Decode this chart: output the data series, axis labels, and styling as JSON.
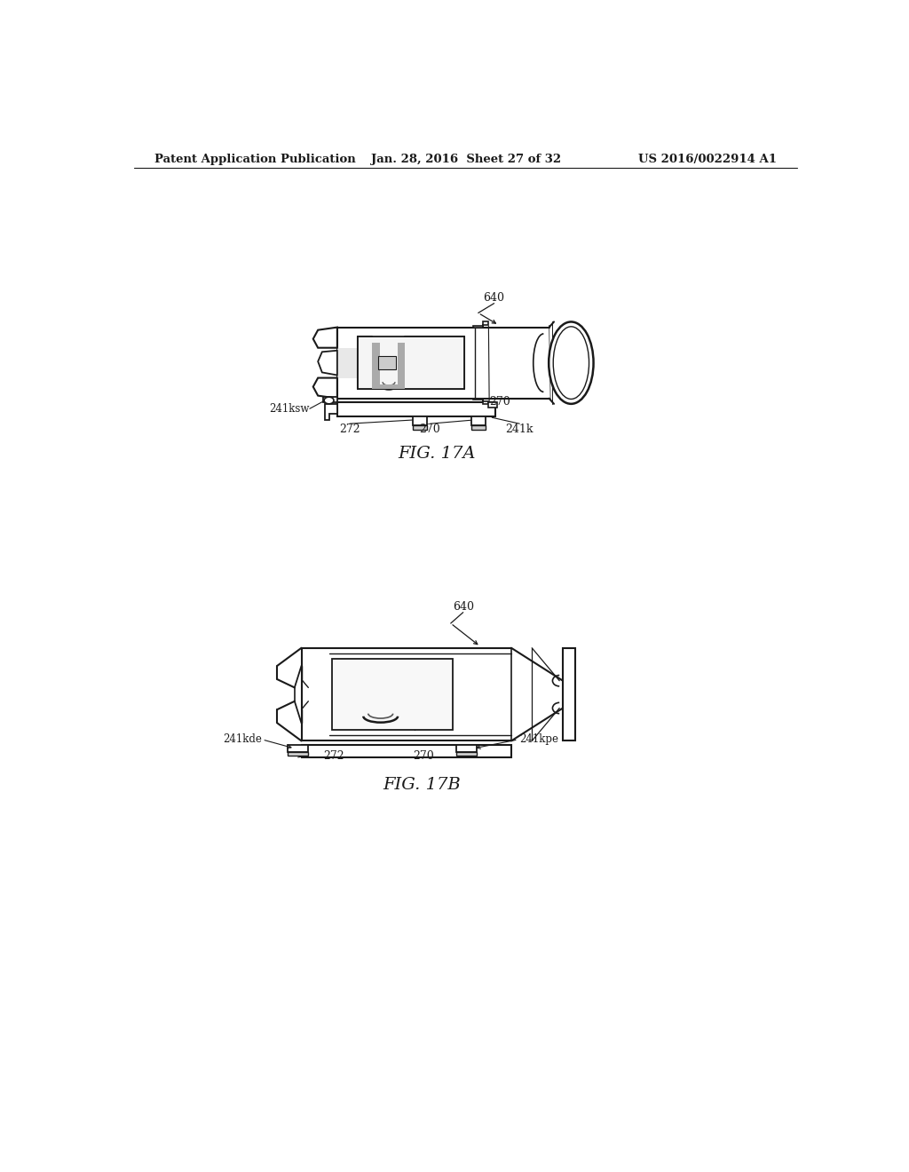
{
  "bg_color": "#ffffff",
  "header_left": "Patent Application Publication",
  "header_center": "Jan. 28, 2016  Sheet 27 of 32",
  "header_right": "US 2016/0022914 A1",
  "fig17a_label": "FIG. 17A",
  "fig17b_label": "FIG. 17B",
  "line_color": "#1a1a1a",
  "text_color": "#1a1a1a",
  "header_fontsize": 9.5,
  "fig_label_fontsize": 14,
  "ref_fontsize": 9
}
